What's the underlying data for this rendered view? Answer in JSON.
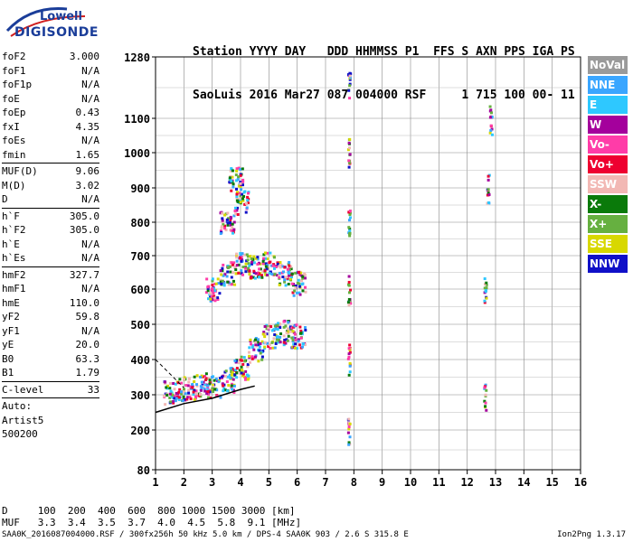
{
  "logo": {
    "top": "Lowell",
    "main": "DIGISONDE"
  },
  "header": {
    "line1": "Station YYYY DAY   DDD HHMMSS P1  FFS S AXN PPS IGA PS",
    "line2": "SaoLuis 2016 Mar27 087 004000 RSF     1 715 100 00- 11"
  },
  "params": [
    {
      "name": "foF2",
      "value": "3.000"
    },
    {
      "name": "foF1",
      "value": "N/A"
    },
    {
      "name": "foF1p",
      "value": "N/A"
    },
    {
      "name": "foE",
      "value": "N/A"
    },
    {
      "name": "foEp",
      "value": "0.43"
    },
    {
      "name": "fxI",
      "value": "4.35"
    },
    {
      "name": "foEs",
      "value": "N/A"
    },
    {
      "name": "fmin",
      "value": "1.65"
    },
    {
      "sep": true
    },
    {
      "name": "MUF(D)",
      "value": "9.06"
    },
    {
      "name": "M(D)",
      "value": "3.02"
    },
    {
      "name": "D",
      "value": "N/A"
    },
    {
      "sep": true
    },
    {
      "name": "h`F",
      "value": "305.0"
    },
    {
      "name": "h`F2",
      "value": "305.0"
    },
    {
      "name": "h`E",
      "value": "N/A"
    },
    {
      "name": "h`Es",
      "value": "N/A"
    },
    {
      "sep": true
    },
    {
      "name": "hmF2",
      "value": "327.7"
    },
    {
      "name": "hmF1",
      "value": "N/A"
    },
    {
      "name": "hmE",
      "value": "110.0"
    },
    {
      "name": "yF2",
      "value": "59.8"
    },
    {
      "name": "yF1",
      "value": "N/A"
    },
    {
      "name": "yE",
      "value": "20.0"
    },
    {
      "name": "B0",
      "value": "63.3"
    },
    {
      "name": "B1",
      "value": "1.79"
    },
    {
      "sep": true
    },
    {
      "name": "C-level",
      "value": "33"
    },
    {
      "sep": true
    }
  ],
  "auto": [
    "Auto:",
    "Artist5",
    "500200"
  ],
  "bottom": {
    "d_row": "D     100  200  400  600  800 1000 1500 3000 [km]",
    "muf_row": "MUF   3.3  3.4  3.5  3.7  4.0  4.5  5.8  9.1 [MHz]"
  },
  "footer": "SAA0K_2016087004000.RSF / 300fx256h 50 kHz 5.0 km / DPS-4 SAA0K 903 / 2.6 S 315.8 E",
  "version": "Ion2Png 1.3.17",
  "legend": [
    {
      "label": "NoVal",
      "color": "#9a9a9a"
    },
    {
      "label": "NNE",
      "color": "#3aa6ff"
    },
    {
      "label": "E",
      "color": "#2ec8ff"
    },
    {
      "label": "W",
      "color": "#a4009c"
    },
    {
      "label": "Vo-",
      "color": "#ff3ca8"
    },
    {
      "label": "Vo+",
      "color": "#ee0030"
    },
    {
      "label": "SSW",
      "color": "#f2b8b4"
    },
    {
      "label": "X-",
      "color": "#0a7a0a"
    },
    {
      "label": "X+",
      "color": "#66b040"
    },
    {
      "label": "SSE",
      "color": "#d8d800"
    },
    {
      "label": "NNW",
      "color": "#1010c8"
    }
  ],
  "chart_data": {
    "type": "scatter",
    "xlabel": "",
    "ylabel": "",
    "xlim": [
      1,
      16
    ],
    "ylim_mapping": [
      [
        80,
        520
      ],
      [
        200,
        476
      ],
      [
        300,
        437
      ],
      [
        400,
        398
      ],
      [
        500,
        359
      ],
      [
        600,
        320
      ],
      [
        700,
        283
      ],
      [
        800,
        246
      ],
      [
        900,
        208
      ],
      [
        1000,
        169
      ],
      [
        1100,
        131
      ],
      [
        1280,
        63
      ]
    ],
    "x_ticks": [
      1,
      2,
      3,
      4,
      5,
      6,
      7,
      8,
      9,
      10,
      11,
      12,
      13,
      14,
      15,
      16
    ],
    "y_ticks": [
      80,
      200,
      300,
      400,
      500,
      600,
      700,
      800,
      900,
      1000,
      1100,
      1280
    ],
    "grid": true,
    "series": [
      {
        "values": [
          [
            1.5,
            310
          ],
          [
            2.0,
            320
          ],
          [
            2.5,
            325
          ],
          [
            3.0,
            330
          ],
          [
            3.5,
            345
          ],
          [
            4.0,
            380
          ],
          [
            4.5,
            430
          ],
          [
            5.0,
            470
          ],
          [
            5.5,
            480
          ],
          [
            6.0,
            470
          ]
        ]
      },
      {
        "values": [
          [
            3.0,
            600
          ],
          [
            3.5,
            650
          ],
          [
            4.0,
            680
          ],
          [
            4.5,
            670
          ],
          [
            5.0,
            680
          ],
          [
            5.5,
            650
          ],
          [
            6.0,
            620
          ]
        ]
      },
      {
        "values": [
          [
            3.5,
            800
          ],
          [
            4.0,
            860
          ],
          [
            3.8,
            930
          ]
        ]
      },
      {
        "values": [
          [
            7.8,
            200
          ],
          [
            7.8,
            400
          ],
          [
            7.8,
            600
          ],
          [
            7.8,
            800
          ],
          [
            7.8,
            1000
          ],
          [
            7.8,
            1200
          ]
        ]
      },
      {
        "values": [
          [
            12.6,
            300
          ],
          [
            12.6,
            600
          ],
          [
            12.7,
            900
          ],
          [
            12.8,
            1100
          ]
        ]
      }
    ],
    "fitted_curve": [
      [
        1.0,
        250
      ],
      [
        2.0,
        275
      ],
      [
        3.0,
        290
      ],
      [
        4.0,
        315
      ],
      [
        4.5,
        325
      ]
    ]
  }
}
